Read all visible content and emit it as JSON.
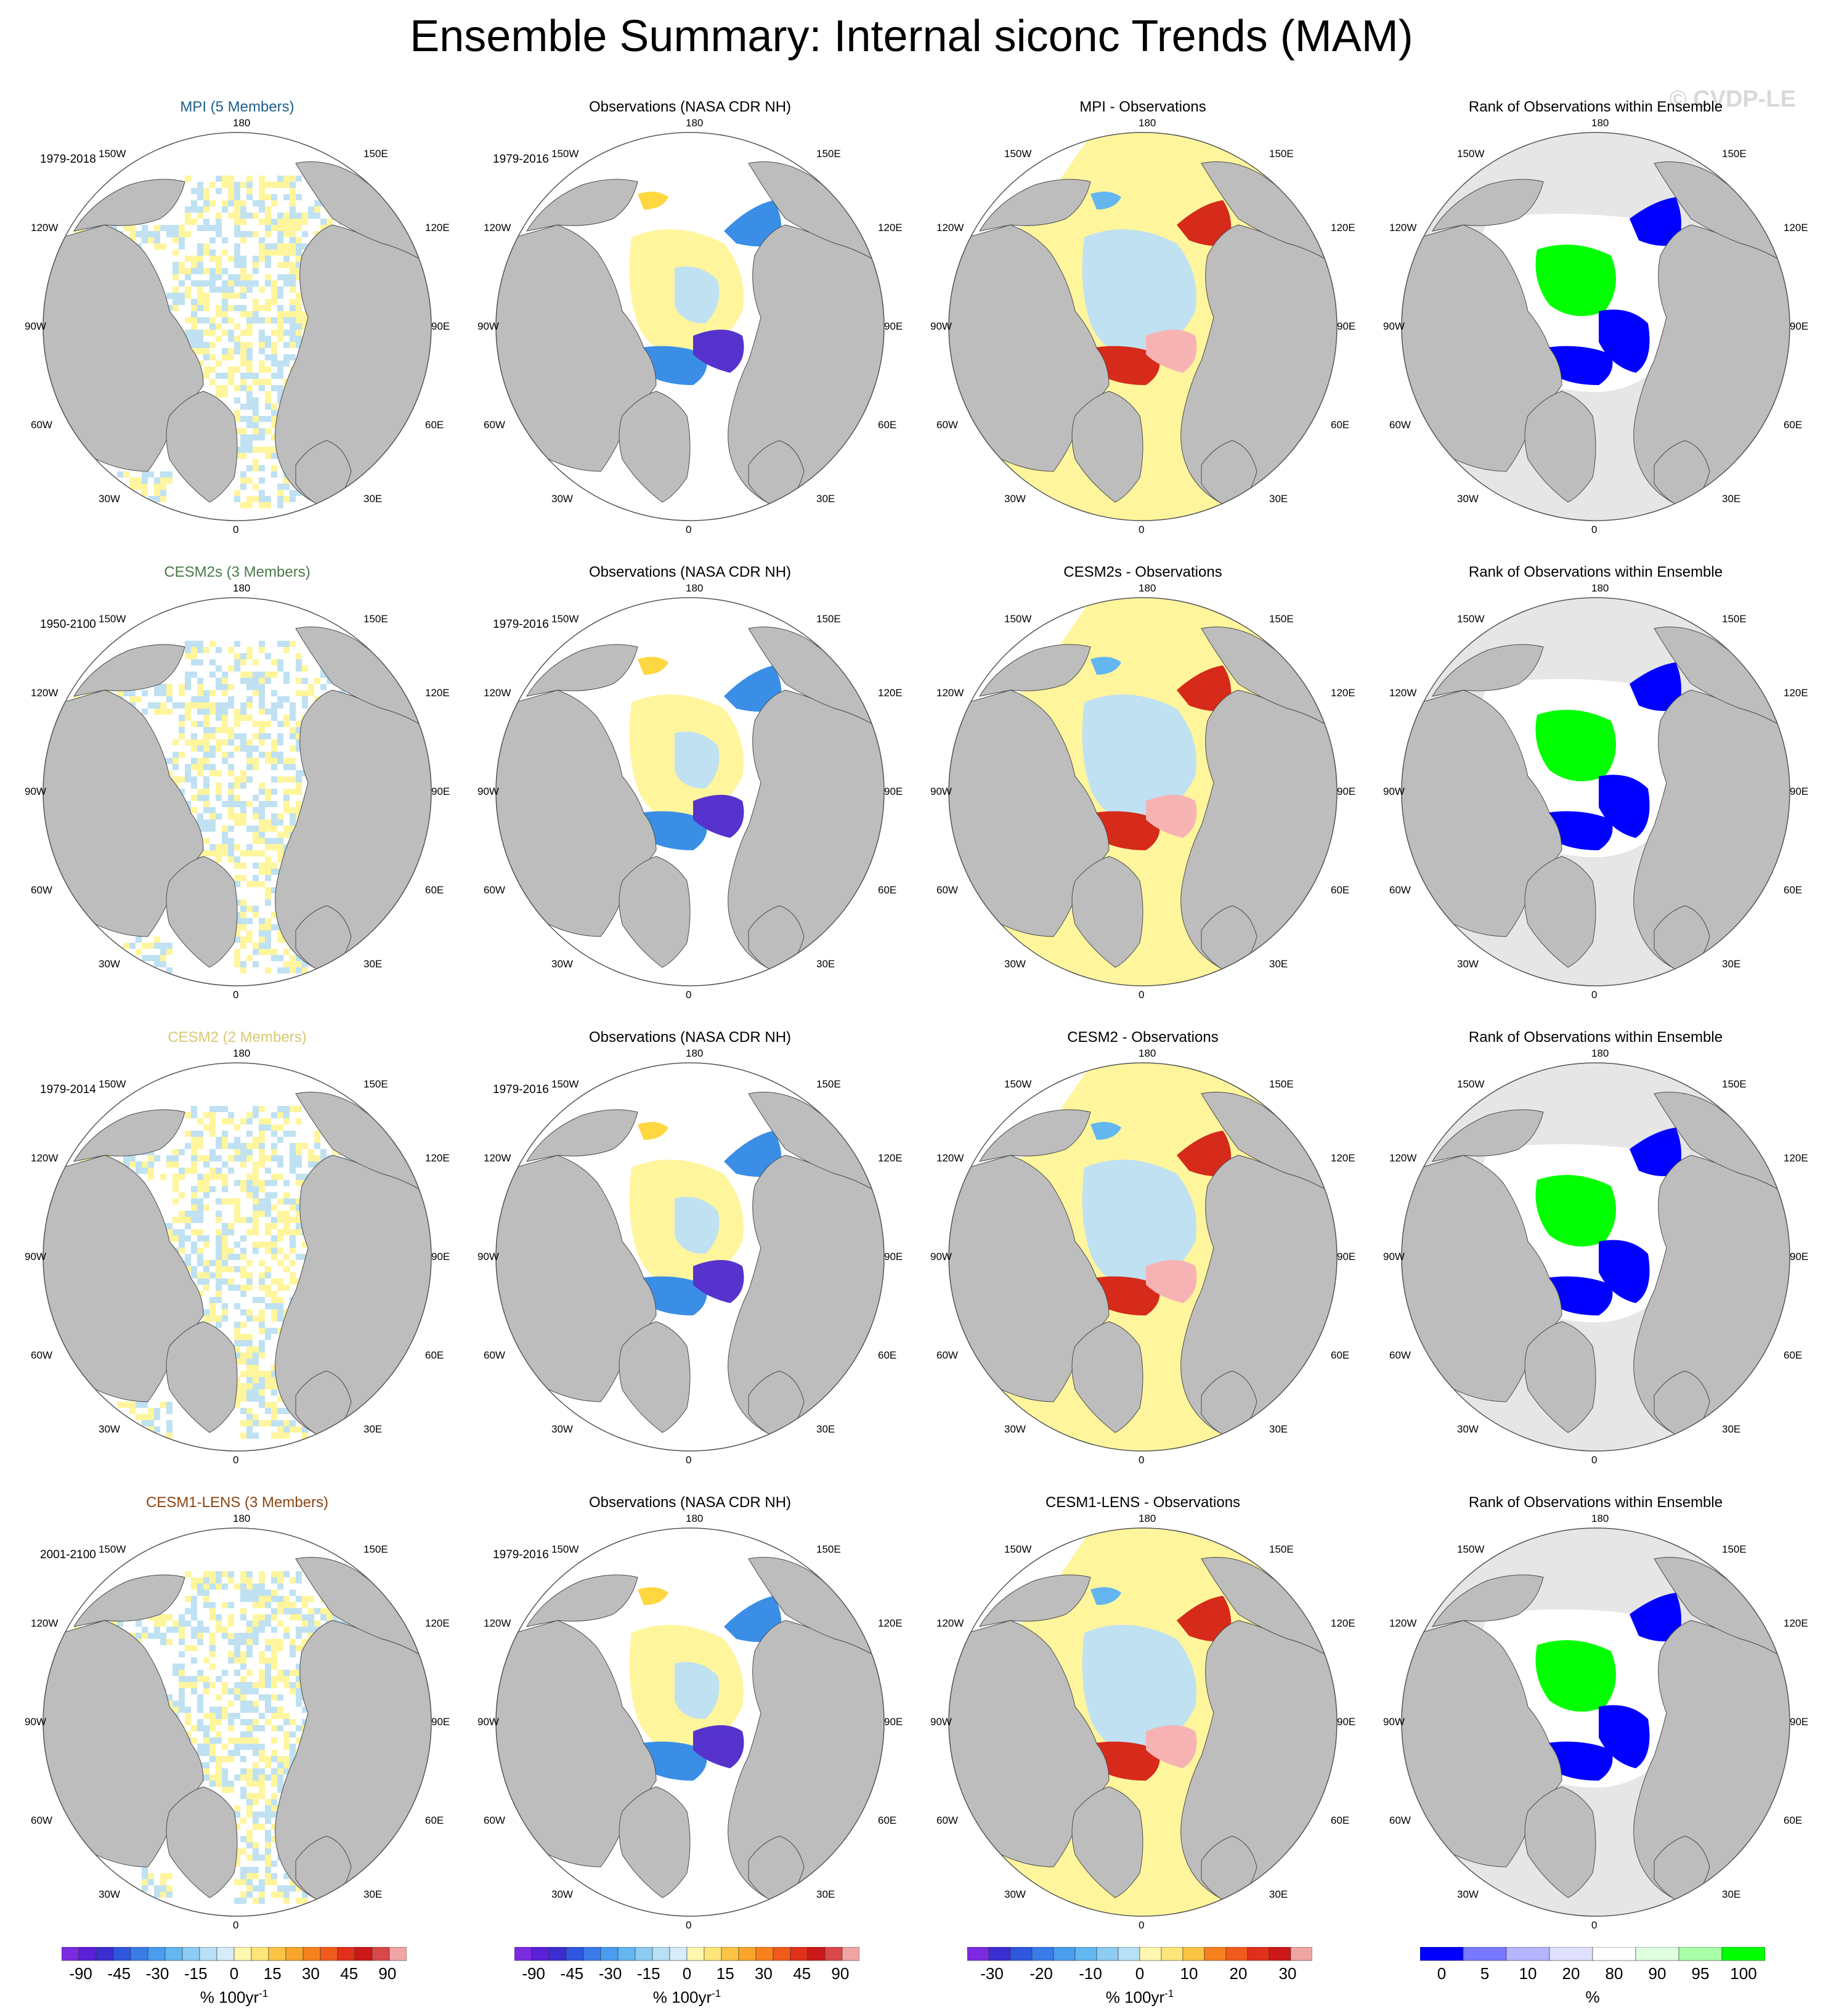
{
  "title": "Ensemble Summary: Internal siconc Trends (MAM)",
  "watermark": "© CVDP-LE",
  "colors": {
    "land": "#bdbdbd",
    "ocean_missing": "#ffffff",
    "rank_outside": "#e6e6e6",
    "rank_low": "#0000ff",
    "rank_high": "#00ff00",
    "sea_ice_base": "#fff59d",
    "sea_ice_alt": "#bfe1f2",
    "obs_blue": "#3a8ee6",
    "obs_dark": "#5533cc",
    "obs_yellow": "#ffd740",
    "diff_red": "#d62a1a",
    "diff_pink": "#f7b3b3",
    "diff_orange": "#f59a23"
  },
  "map_labels": {
    "top": "180",
    "bottom": "0",
    "left_upper": "150W",
    "right_upper": "150E",
    "left_mid_upper": "120W",
    "right_mid_upper": "120E",
    "left_mid": "90W",
    "right_mid": "90E",
    "left_mid_lower": "60W",
    "right_mid_lower": "60E",
    "left_lower": "30W",
    "right_lower": "30E"
  },
  "rows": [
    {
      "model": "MPI (5 Members)",
      "model_color": "#1f5f8b",
      "model_period": "1979-2018",
      "obs_title": "Observations (NASA CDR NH)",
      "obs_period": "1979-2016",
      "diff_title": "MPI - Observations",
      "rank_title": "Rank of Observations within Ensemble"
    },
    {
      "model": "CESM2s (3 Members)",
      "model_color": "#4a7a4a",
      "model_period": "1950-2100",
      "obs_title": "Observations (NASA CDR NH)",
      "obs_period": "1979-2016",
      "diff_title": "CESM2s - Observations",
      "rank_title": "Rank of Observations within Ensemble"
    },
    {
      "model": "CESM2 (2 Members)",
      "model_color": "#d8c873",
      "model_period": "1979-2014",
      "obs_title": "Observations (NASA CDR NH)",
      "obs_period": "1979-2016",
      "diff_title": "CESM2 - Observations",
      "rank_title": "Rank of Observations within Ensemble"
    },
    {
      "model": "CESM1-LENS (3 Members)",
      "model_color": "#8b4513",
      "model_period": "2001-2100",
      "obs_title": "Observations (NASA CDR NH)",
      "obs_period": "1979-2016",
      "diff_title": "CESM1-LENS - Observations",
      "rank_title": "Rank of Observations within Ensemble"
    }
  ],
  "colorbars": [
    {
      "units": "% 100yr",
      "units_sup": "-1",
      "ticks": [
        "-90",
        "-45",
        "-30",
        "-15",
        "0",
        "15",
        "30",
        "45",
        "90"
      ],
      "colors": [
        "#7b2ae0",
        "#5a1fd6",
        "#3a2ed0",
        "#2f56df",
        "#3a7be8",
        "#4a9ded",
        "#63b6f0",
        "#8ccbf2",
        "#b7dff5",
        "#d6ecf8",
        "#fff7b0",
        "#fde57a",
        "#fbc445",
        "#f9a52c",
        "#f6811f",
        "#f05a1a",
        "#e0301a",
        "#cc1818",
        "#d84848",
        "#f0a5a5"
      ]
    },
    {
      "units": "% 100yr",
      "units_sup": "-1",
      "ticks": [
        "-90",
        "-45",
        "-30",
        "-15",
        "0",
        "15",
        "30",
        "45",
        "90"
      ],
      "colors": [
        "#7b2ae0",
        "#5a1fd6",
        "#3a2ed0",
        "#2f56df",
        "#3a7be8",
        "#4a9ded",
        "#63b6f0",
        "#8ccbf2",
        "#b7dff5",
        "#d6ecf8",
        "#fff7b0",
        "#fde57a",
        "#fbc445",
        "#f9a52c",
        "#f6811f",
        "#f05a1a",
        "#e0301a",
        "#cc1818",
        "#d84848",
        "#f0a5a5"
      ]
    },
    {
      "units": "% 100yr",
      "units_sup": "-1",
      "ticks": [
        "-30",
        "-20",
        "-10",
        "0",
        "10",
        "20",
        "30"
      ],
      "colors": [
        "#7b2ae0",
        "#3a2ed0",
        "#2f56df",
        "#3a7be8",
        "#4a9ded",
        "#63b6f0",
        "#8ccbf2",
        "#b7dff5",
        "#fff7b0",
        "#fde57a",
        "#fbc445",
        "#f6811f",
        "#f05a1a",
        "#e0301a",
        "#cc1818",
        "#f0a5a5"
      ]
    },
    {
      "units": "%",
      "units_sup": "",
      "ticks": [
        "0",
        "5",
        "10",
        "20",
        "80",
        "90",
        "95",
        "100"
      ],
      "colors": [
        "#0000ff",
        "#7878ff",
        "#b4b4ff",
        "#e0e0ff",
        "#ffffff",
        "#e0ffe0",
        "#a8ffa8",
        "#00ff00"
      ]
    }
  ],
  "chart_data": {
    "type": "heatmap",
    "title": "Ensemble Summary: Internal siconc Trends (MAM)",
    "projection": "north polar stereographic",
    "columns": [
      "model trend",
      "observed trend",
      "model minus observations",
      "rank of observations within ensemble"
    ],
    "models": [
      "MPI (5 Members)",
      "CESM2s (3 Members)",
      "CESM2 (2 Members)",
      "CESM1-LENS (3 Members)"
    ],
    "observations": "NASA CDR NH",
    "trend_colorbar_ticks": [
      -90,
      -45,
      -30,
      -15,
      0,
      15,
      30,
      45,
      90
    ],
    "difference_colorbar_ticks": [
      -30,
      -20,
      -10,
      0,
      10,
      20,
      30
    ],
    "rank_colorbar_ticks": [
      0,
      5,
      10,
      20,
      80,
      90,
      95,
      100
    ]
  }
}
